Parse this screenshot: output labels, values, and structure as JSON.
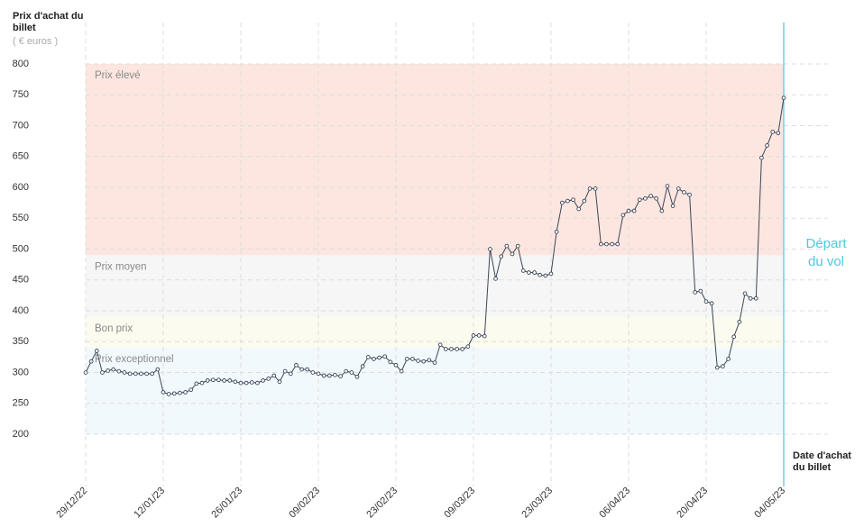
{
  "chart_data": {
    "type": "line",
    "y_label": "Prix d'achat du billet",
    "y_unit": "( € euros )",
    "x_label": "Date d'achat du billet",
    "grid": true,
    "xlim": [
      "2022-12-29",
      "2023-05-04"
    ],
    "ylim": [
      200,
      800
    ],
    "yticks": [
      200,
      250,
      300,
      350,
      400,
      450,
      500,
      550,
      600,
      650,
      700,
      750,
      800
    ],
    "xticks": [
      {
        "value": "2022-12-29",
        "label": "29/12/22"
      },
      {
        "value": "2023-01-12",
        "label": "12/01/23"
      },
      {
        "value": "2023-01-26",
        "label": "26/01/23"
      },
      {
        "value": "2023-02-09",
        "label": "09/02/23"
      },
      {
        "value": "2023-02-23",
        "label": "23/02/23"
      },
      {
        "value": "2023-03-09",
        "label": "09/03/23"
      },
      {
        "value": "2023-03-23",
        "label": "23/03/23"
      },
      {
        "value": "2023-04-06",
        "label": "06/04/23"
      },
      {
        "value": "2023-04-20",
        "label": "20/04/23"
      },
      {
        "value": "2023-05-04",
        "label": "04/05/23"
      }
    ],
    "bands": [
      {
        "label": "Prix élevé",
        "from": 490,
        "to": 800,
        "color": "#fde6e0"
      },
      {
        "label": "Prix moyen",
        "from": 390,
        "to": 490,
        "color": "#f6f6f6"
      },
      {
        "label": "Bon prix",
        "from": 340,
        "to": 390,
        "color": "#fbfbef"
      },
      {
        "label": "Prix exceptionnel",
        "from": 200,
        "to": 340,
        "color": "#f2f9fd"
      }
    ],
    "annotation": {
      "x": "2023-05-04",
      "label": "Départ du vol",
      "color": "#4ec8e0"
    },
    "x": [
      "2022-12-29",
      "2022-12-30",
      "2022-12-31",
      "2023-01-01",
      "2023-01-02",
      "2023-01-03",
      "2023-01-04",
      "2023-01-05",
      "2023-01-06",
      "2023-01-07",
      "2023-01-08",
      "2023-01-09",
      "2023-01-10",
      "2023-01-11",
      "2023-01-12",
      "2023-01-13",
      "2023-01-14",
      "2023-01-15",
      "2023-01-16",
      "2023-01-17",
      "2023-01-18",
      "2023-01-19",
      "2023-01-20",
      "2023-01-21",
      "2023-01-22",
      "2023-01-23",
      "2023-01-24",
      "2023-01-25",
      "2023-01-26",
      "2023-01-27",
      "2023-01-28",
      "2023-01-29",
      "2023-01-30",
      "2023-01-31",
      "2023-02-01",
      "2023-02-02",
      "2023-02-03",
      "2023-02-04",
      "2023-02-05",
      "2023-02-06",
      "2023-02-07",
      "2023-02-08",
      "2023-02-09",
      "2023-02-10",
      "2023-02-11",
      "2023-02-12",
      "2023-02-13",
      "2023-02-14",
      "2023-02-15",
      "2023-02-16",
      "2023-02-17",
      "2023-02-18",
      "2023-02-19",
      "2023-02-20",
      "2023-02-21",
      "2023-02-22",
      "2023-02-23",
      "2023-02-24",
      "2023-02-25",
      "2023-02-26",
      "2023-02-27",
      "2023-02-28",
      "2023-03-01",
      "2023-03-02",
      "2023-03-03",
      "2023-03-04",
      "2023-03-05",
      "2023-03-06",
      "2023-03-07",
      "2023-03-08",
      "2023-03-09",
      "2023-03-10",
      "2023-03-11",
      "2023-03-12",
      "2023-03-13",
      "2023-03-14",
      "2023-03-15",
      "2023-03-16",
      "2023-03-17",
      "2023-03-18",
      "2023-03-19",
      "2023-03-20",
      "2023-03-21",
      "2023-03-22",
      "2023-03-23",
      "2023-03-24",
      "2023-03-25",
      "2023-03-26",
      "2023-03-27",
      "2023-03-28",
      "2023-03-29",
      "2023-03-30",
      "2023-03-31",
      "2023-04-01",
      "2023-04-02",
      "2023-04-03",
      "2023-04-04",
      "2023-04-05",
      "2023-04-06",
      "2023-04-07",
      "2023-04-08",
      "2023-04-09",
      "2023-04-10",
      "2023-04-11",
      "2023-04-12",
      "2023-04-13",
      "2023-04-14",
      "2023-04-15",
      "2023-04-16",
      "2023-04-17",
      "2023-04-18",
      "2023-04-19",
      "2023-04-20",
      "2023-04-21",
      "2023-04-22",
      "2023-04-23",
      "2023-04-24",
      "2023-04-25",
      "2023-04-26",
      "2023-04-27",
      "2023-04-28",
      "2023-04-29",
      "2023-04-30",
      "2023-05-01",
      "2023-05-02",
      "2023-05-03",
      "2023-05-04"
    ],
    "series": [
      {
        "color": "#3a4658",
        "values": [
          300,
          318,
          335,
          300,
          303,
          305,
          302,
          300,
          298,
          298,
          298,
          298,
          298,
          305,
          268,
          265,
          266,
          267,
          268,
          272,
          282,
          283,
          287,
          288,
          288,
          287,
          287,
          285,
          283,
          283,
          284,
          283,
          287,
          290,
          295,
          285,
          302,
          298,
          312,
          305,
          305,
          300,
          298,
          295,
          295,
          296,
          294,
          302,
          300,
          293,
          310,
          325,
          322,
          324,
          326,
          317,
          312,
          302,
          322,
          322,
          319,
          318,
          320,
          316,
          345,
          338,
          338,
          338,
          338,
          342,
          360,
          360,
          359,
          500,
          452,
          488,
          505,
          492,
          505,
          465,
          462,
          462,
          458,
          457,
          460,
          528,
          575,
          578,
          580,
          565,
          578,
          598,
          598,
          508,
          508,
          508,
          508,
          555,
          562,
          562,
          580,
          582,
          586,
          582,
          562,
          602,
          570,
          598,
          592,
          588,
          430,
          432,
          415,
          412,
          308,
          310,
          322,
          358,
          382,
          428,
          420,
          420,
          648,
          668,
          690,
          688,
          745
        ]
      }
    ]
  }
}
